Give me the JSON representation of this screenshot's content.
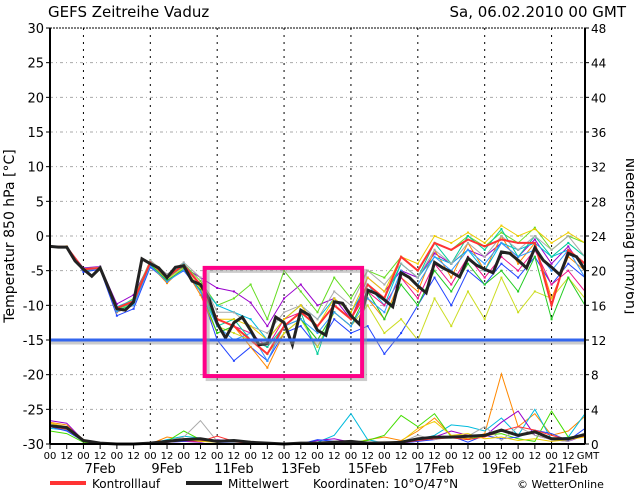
{
  "header": {
    "title": "GEFS Zeitreihe Vaduz",
    "run": "Sa, 06.02.2010 00 GMT"
  },
  "legend": {
    "control": "Kontrolllauf",
    "mean": "Mittelwert",
    "coords": "Koordinaten: 10°O/47°N",
    "credit": "© WetterOnline"
  },
  "colors": {
    "control": "#ff3333",
    "mean": "#222222",
    "reference": "#3366ee",
    "highlight": "#ff0088"
  },
  "chart_data": {
    "type": "line",
    "title": "GEFS Zeitreihe Vaduz",
    "ylabel": "Temperatur 850 hPa [°C]",
    "y2label": "Niederschlag [mm/6h]",
    "ylim": [
      -30,
      30
    ],
    "y2lim": [
      0,
      48
    ],
    "xlim_hours": [
      0,
      384
    ],
    "yticks": [
      30,
      25,
      20,
      15,
      10,
      5,
      0,
      -5,
      -10,
      -15,
      -20,
      -25,
      -30
    ],
    "y2ticks": [
      48,
      44,
      40,
      36,
      32,
      28,
      24,
      20,
      16,
      12,
      8,
      4,
      0
    ],
    "xtick_labels": [
      "00",
      "12",
      "00",
      "12",
      "00",
      "12",
      "00",
      "12",
      "00",
      "12",
      "00",
      "12",
      "00",
      "12",
      "00",
      "12",
      "00",
      "12",
      "00",
      "12",
      "00",
      "12",
      "00",
      "12",
      "00",
      "12",
      "00",
      "12",
      "00",
      "12",
      "00",
      "12"
    ],
    "xtick_unit": "GMT",
    "date_labels": [
      "7Feb",
      "9Feb",
      "11Feb",
      "13Feb",
      "15Feb",
      "17Feb",
      "19Feb",
      "21Feb"
    ],
    "reference_line": -15,
    "highlight_box": {
      "hours": [
        111,
        224
      ],
      "temp": [
        -4.6,
        -20.2
      ]
    },
    "grid": true,
    "mean_temp_6h": [
      -1.5,
      -1.6,
      -1.6,
      -3.6,
      -4.8,
      -5.8,
      -4.6,
      -7.5,
      -10.5,
      -10.7,
      -9.5,
      -3.3,
      -4,
      -4.6,
      -6,
      -4.5,
      -4.3,
      -6.5,
      -7,
      -9,
      -12.6,
      -14.7,
      -12.5,
      -11.7,
      -13.6,
      -15.7,
      -15.5,
      -11.7,
      -12.5,
      -15.7,
      -10.7,
      -11.4,
      -13.6,
      -14.3,
      -9.5,
      -9.7,
      -11.5,
      -12.7,
      -7.8,
      -8.3,
      -9.2,
      -10.2,
      -5.3,
      -6,
      -7.2,
      -8.2,
      -3.8,
      -4.6,
      -5.2,
      -5.9,
      -3.2,
      -4.2,
      -4.8,
      -5.3,
      -2.3,
      -2.5,
      -3.5,
      -4.6,
      -1.7,
      -3.5,
      -4.5,
      -5.6,
      -2.5,
      -3,
      -4.9
    ],
    "control_temp_12h": [
      -1.5,
      -1.6,
      -4.8,
      -4.6,
      -10.4,
      -9.4,
      -3.8,
      -5.9,
      -4.2,
      -7,
      -12,
      -13,
      -15,
      -17,
      -13,
      -11,
      -13,
      -10,
      -12,
      -7,
      -9,
      -3,
      -5,
      -1,
      -2,
      -0.5,
      -1.5,
      -0.5,
      -1,
      -1,
      -10,
      -2,
      -4
    ],
    "members_temp_12h": [
      {
        "color": "#9900cc",
        "values": [
          -1.5,
          -1.6,
          -4.6,
          -4.4,
          -9.8,
          -8.5,
          -3.8,
          -5.5,
          -4.5,
          -6,
          -7.5,
          -8,
          -9.6,
          -13,
          -9,
          -7,
          -10,
          -9,
          -12,
          -6,
          -8,
          -5,
          -6,
          -2.5,
          -4,
          -2,
          -3,
          -1,
          -3,
          -0.5,
          -4,
          -1.5,
          -5
        ]
      },
      {
        "color": "#66dd22",
        "values": [
          -1.5,
          -1.7,
          -5,
          -4.8,
          -10.5,
          -9,
          -3.5,
          -5.8,
          -4,
          -6.5,
          -10,
          -9,
          -7,
          -12,
          -5,
          -8,
          -11,
          -6,
          -9,
          -5,
          -6,
          -3,
          -5,
          -1,
          -2,
          0,
          -1.5,
          0.5,
          -1,
          1.2,
          -2,
          0,
          -1
        ]
      },
      {
        "color": "#2244ff",
        "values": [
          -1.6,
          -1.6,
          -5.2,
          -4.8,
          -11.5,
          -10.5,
          -4.5,
          -6.5,
          -5,
          -8,
          -15,
          -18,
          -16,
          -18,
          -14,
          -13,
          -16,
          -12,
          -14,
          -13,
          -17,
          -14,
          -10,
          -6,
          -10,
          -5,
          -7,
          -4,
          -6,
          -3,
          -7,
          -4,
          -6
        ]
      },
      {
        "color": "#ff8800",
        "values": [
          -1.5,
          -1.5,
          -4.9,
          -4.6,
          -11,
          -10,
          -4.2,
          -6.8,
          -4.5,
          -8.5,
          -14,
          -13,
          -16,
          -19,
          -14,
          -12,
          -15,
          -11,
          -13,
          -9,
          -12,
          -6,
          -8,
          -2,
          -6,
          -1,
          -5,
          0,
          -4,
          -1,
          -9,
          -3,
          -5
        ]
      },
      {
        "color": "#00bbdd",
        "values": [
          -1.5,
          -1.6,
          -4.7,
          -4.5,
          -10.2,
          -9.2,
          -3.7,
          -5.8,
          -4,
          -7,
          -10,
          -11,
          -12,
          -15,
          -12,
          -10,
          -12,
          -9,
          -11,
          -7,
          -10,
          -4,
          -6,
          -3,
          -4,
          -2,
          -5,
          -1,
          -2,
          -1,
          -3,
          -2,
          -4
        ]
      },
      {
        "color": "#ccdd22",
        "values": [
          -1.5,
          -1.6,
          -4.8,
          -4.7,
          -10.6,
          -9.6,
          -4.1,
          -6.2,
          -4.6,
          -7.5,
          -13,
          -14,
          -15,
          -17,
          -14,
          -12,
          -16,
          -11,
          -13,
          -10,
          -14,
          -12,
          -15,
          -9,
          -13,
          -8,
          -12,
          -6,
          -11,
          -8,
          -9,
          -6,
          -9
        ]
      },
      {
        "color": "#ee1188",
        "values": [
          -1.5,
          -1.6,
          -4.8,
          -4.6,
          -10.4,
          -9.4,
          -4,
          -6.1,
          -4.3,
          -7.2,
          -12,
          -13,
          -14,
          -16,
          -12,
          -11,
          -13,
          -10,
          -12,
          -8,
          -10,
          -6,
          -9,
          -4,
          -7,
          -3,
          -6,
          -3,
          -5,
          -2,
          -7,
          -5,
          -8
        ]
      },
      {
        "color": "#00cc99",
        "values": [
          -1.5,
          -1.6,
          -4.8,
          -4.6,
          -10.6,
          -9.6,
          -4.1,
          -6,
          -4.4,
          -7,
          -13,
          -12,
          -15,
          -16,
          -13,
          -11,
          -17,
          -10,
          -12,
          -7,
          -9,
          -4,
          -6,
          -1,
          -4,
          0,
          -2,
          1,
          -3,
          0,
          -3,
          -1,
          -3
        ]
      },
      {
        "color": "#aaaaaa",
        "values": [
          -1.5,
          -1.6,
          -4.7,
          -4.5,
          -10.3,
          -9.3,
          -3.5,
          -5.5,
          -3.8,
          -6,
          -11,
          -11,
          -13,
          -14,
          -11,
          -10,
          -12,
          -8,
          -10,
          -5,
          -7,
          -4,
          -6,
          -2,
          -4,
          -1,
          -3,
          0,
          -2,
          0,
          -2,
          0,
          -3
        ]
      },
      {
        "color": "#22cc22",
        "values": [
          -1.5,
          -1.6,
          -4.9,
          -4.7,
          -10.8,
          -9.8,
          -4.2,
          -6.4,
          -4.8,
          -7.8,
          -14,
          -13,
          -15,
          -17,
          -13,
          -12,
          -15,
          -11,
          -13,
          -8,
          -12,
          -7,
          -10,
          -5,
          -8,
          -4,
          -7,
          -5,
          -8,
          -3,
          -12,
          -6,
          -10
        ]
      },
      {
        "color": "#eecc00",
        "values": [
          -1.5,
          -1.6,
          -4.8,
          -4.6,
          -10.5,
          -9.5,
          -4,
          -6,
          -4.2,
          -7,
          -12,
          -12,
          -13,
          -15,
          -12,
          -10,
          -13,
          -9,
          -11,
          -6,
          -8,
          -3,
          -4,
          0,
          -1,
          0.5,
          -1,
          1.5,
          0,
          1,
          -1,
          0.5,
          -1
        ]
      },
      {
        "color": "#3399ff",
        "values": [
          -1.5,
          -1.6,
          -4.9,
          -4.8,
          -10.9,
          -10,
          -4.3,
          -6.6,
          -4.9,
          -8,
          -13,
          -15,
          -14,
          -18,
          -13,
          -12,
          -14,
          -11,
          -13,
          -9,
          -11,
          -5,
          -7,
          -3,
          -5,
          -2,
          -4,
          -1,
          -3,
          -2,
          -5,
          -2,
          -6
        ]
      }
    ],
    "mean_precip_12h": [
      2.1,
      1.9,
      0.4,
      0.1,
      0,
      0,
      0.1,
      0.3,
      0.5,
      0.6,
      0.3,
      0.4,
      0.2,
      0.1,
      0,
      0.1,
      0.1,
      0.2,
      0.3,
      0.1,
      0.1,
      0.2,
      0.6,
      0.8,
      0.8,
      0.9,
      1.0,
      1.6,
      1.0,
      1.4,
      0.6,
      0.6,
      1.1
    ],
    "members_precip_12h": [
      {
        "color": "#ff8800",
        "values": [
          2.5,
          2.2,
          0.5,
          0,
          0,
          0,
          0,
          0.8,
          0.5,
          0.4,
          0.2,
          0.3,
          0,
          0,
          0,
          0,
          0,
          0,
          0,
          0.5,
          0.8,
          0.4,
          1.5,
          3.0,
          1.0,
          0.6,
          1.2,
          8.1,
          2.0,
          3.5,
          1.0,
          1.5,
          3.2
        ]
      },
      {
        "color": "#00bbdd",
        "values": [
          1.8,
          1.6,
          0.3,
          0,
          0,
          0,
          0,
          0.5,
          0.9,
          0.7,
          0.2,
          0.5,
          0,
          0,
          0,
          0,
          0.2,
          1.0,
          3.5,
          0.5,
          0.1,
          0.2,
          0.5,
          1.0,
          2.2,
          2.0,
          1.5,
          3.0,
          1.0,
          4.0,
          0.5,
          0.8,
          3.5
        ]
      },
      {
        "color": "#44dd00",
        "values": [
          1.5,
          1.2,
          0.2,
          0,
          0,
          0,
          0,
          0.3,
          1.5,
          0.5,
          0.3,
          0.2,
          0.2,
          0,
          0,
          0,
          0,
          0.1,
          0.2,
          0.4,
          1.0,
          3.3,
          2.0,
          3.5,
          0.8,
          0.5,
          1.0,
          1.2,
          0.6,
          0.3,
          3.8,
          0.8,
          1.0
        ]
      },
      {
        "color": "#9900cc",
        "values": [
          2.7,
          2.4,
          0.4,
          0,
          0,
          0,
          0,
          0.2,
          0.3,
          0.2,
          0.5,
          0.3,
          0.2,
          0.1,
          0,
          0,
          0.4,
          0.6,
          0.2,
          0,
          0,
          0.2,
          0.3,
          0.8,
          1.5,
          1.0,
          0.9,
          2.5,
          3.8,
          1.0,
          0.5,
          0.3,
          1.0
        ]
      },
      {
        "color": "#2244ff",
        "values": [
          2.0,
          1.5,
          0.3,
          0,
          0,
          0,
          0,
          0.2,
          0.3,
          0.5,
          0.2,
          0.2,
          0,
          0,
          0,
          0,
          0.5,
          0.3,
          0.2,
          0.1,
          0,
          0.1,
          0.3,
          0.5,
          0.9,
          0.2,
          1.0,
          0.6,
          0.8,
          1.6,
          1.2,
          0.4,
          1.8
        ]
      },
      {
        "color": "#aaaaaa",
        "values": [
          2.2,
          1.8,
          0.4,
          0,
          0,
          0,
          0,
          0.3,
          0.8,
          2.7,
          0.3,
          0.2,
          0,
          0,
          0,
          0,
          0,
          0,
          0,
          0.2,
          0.3,
          0.2,
          1.0,
          0.5,
          0.8,
          0.9,
          2.0,
          0.4,
          2.0,
          1.0,
          0.5,
          0.3,
          1.2
        ]
      },
      {
        "color": "#ff3333",
        "values": [
          2.0,
          1.7,
          0.3,
          0,
          0,
          0,
          0,
          0.2,
          0.4,
          0.3,
          0.9,
          0.3,
          0,
          0,
          0,
          0,
          0.1,
          0.2,
          0.1,
          0.2,
          0.1,
          0.1,
          0.4,
          0.6,
          0.7,
          0.5,
          0.8,
          1.5,
          2.0,
          1.6,
          1.0,
          0.5,
          0.9
        ]
      },
      {
        "color": "#eecc00",
        "values": [
          2.4,
          2.0,
          0.5,
          0,
          0,
          0,
          0,
          0.4,
          0.6,
          0.3,
          0.2,
          0.4,
          0.3,
          0.1,
          0,
          0,
          0.1,
          0.3,
          0.2,
          0.1,
          0.2,
          0.3,
          1.8,
          2.6,
          1.0,
          1.2,
          0.6,
          0.8,
          0.4,
          0.6,
          0.3,
          0.5,
          0.8
        ]
      }
    ]
  }
}
